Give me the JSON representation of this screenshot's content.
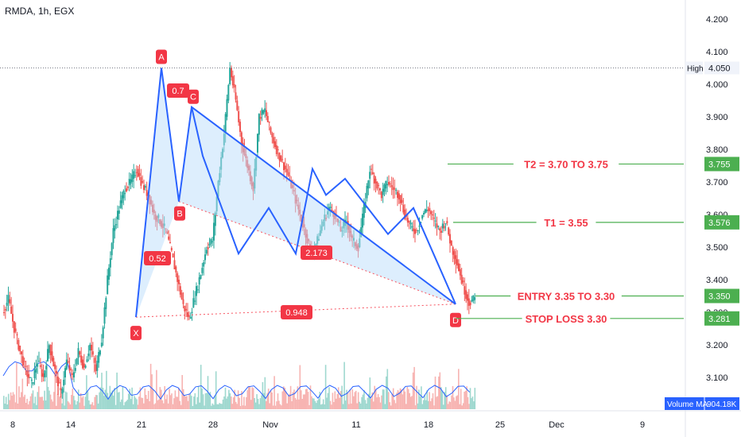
{
  "symbol": "RMDA, 1h, EGX",
  "colors": {
    "up": "#26a69a",
    "down": "#ef5350",
    "pattern": "#2962ff",
    "fill": "#bbdefb",
    "target": "#4caf50",
    "label": "#f23645",
    "volma": "#2962ff"
  },
  "chart_data": {
    "type": "candlestick",
    "x_tick_labels": [
      "8",
      "14",
      "21",
      "28",
      "Nov",
      "11",
      "18",
      "25",
      "Dec",
      "9"
    ],
    "y_ticks": [
      4.2,
      4.1,
      4.0,
      3.9,
      3.8,
      3.7,
      3.6,
      3.5,
      3.4,
      3.3,
      3.2,
      3.1
    ],
    "y_tick_labels": [
      "4.200",
      "4.100",
      "4.000",
      "3.900",
      "3.800",
      "3.700",
      "3.600",
      "3.500",
      "3.400",
      "3.300",
      "3.200",
      "3.100"
    ],
    "ylim": [
      3.05,
      4.26
    ],
    "price_series": [
      3.3,
      3.34,
      3.25,
      3.18,
      3.12,
      3.08,
      3.15,
      3.1,
      3.2,
      3.12,
      3.05,
      3.15,
      3.1,
      3.18,
      3.13,
      3.2,
      3.12,
      3.22,
      3.4,
      3.55,
      3.62,
      3.68,
      3.7,
      3.74,
      3.69,
      3.66,
      3.6,
      3.58,
      3.55,
      3.48,
      3.4,
      3.32,
      3.28,
      3.35,
      3.42,
      3.5,
      3.52,
      3.7,
      3.85,
      4.05,
      3.95,
      3.82,
      3.75,
      3.68,
      3.9,
      3.92,
      3.85,
      3.8,
      3.76,
      3.72,
      3.66,
      3.6,
      3.54,
      3.48,
      3.52,
      3.58,
      3.62,
      3.6,
      3.55,
      3.58,
      3.52,
      3.5,
      3.62,
      3.74,
      3.7,
      3.66,
      3.7,
      3.68,
      3.66,
      3.6,
      3.56,
      3.55,
      3.6,
      3.62,
      3.58,
      3.55,
      3.58,
      3.5,
      3.45,
      3.38,
      3.33,
      3.34
    ],
    "xabcd": [
      {
        "label": "X",
        "price": 3.285
      },
      {
        "label": "A",
        "price": 4.05
      },
      {
        "label": "B",
        "price": 3.64
      },
      {
        "label": "C",
        "price": 3.93
      },
      {
        "label": "D",
        "price": 3.325
      }
    ],
    "ratios": [
      "0.7",
      "0.52",
      "2.173",
      "0.948"
    ],
    "high": {
      "label": "High",
      "value": "4.050",
      "price": 4.05
    },
    "levels": [
      {
        "text": "T2 = 3.70 TO 3.75",
        "badge": "3.755",
        "price": 3.755
      },
      {
        "text": "T1 = 3.55",
        "badge": "3.576",
        "price": 3.576
      },
      {
        "text": "ENTRY 3.35 TO 3.30",
        "badge": "3.350",
        "price": 3.35
      },
      {
        "text": "STOP LOSS 3.30",
        "badge": "3.281",
        "price": 3.281
      }
    ],
    "volume_ma": {
      "label": "Volume MA",
      "value": "904.18K"
    }
  }
}
